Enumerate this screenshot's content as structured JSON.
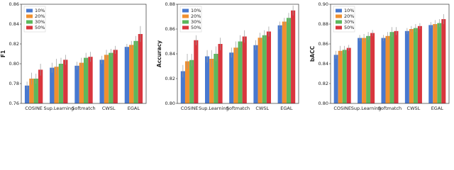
{
  "chart_data": [
    {
      "type": "bar",
      "y_label": "F1",
      "categories": [
        "COSINE",
        "Sup.Learning",
        "Softmatch",
        "CWSL",
        "EGAL"
      ],
      "ylim": [
        0.76,
        0.86
      ],
      "yticks": [
        0.76,
        0.78,
        {
          "value": 0.8,
          "label": "0.80"
        },
        0.82,
        0.84,
        0.86
      ],
      "legend": "upper left",
      "series": [
        {
          "name": "10%",
          "color": "#4878cf",
          "values": [
            0.778,
            0.796,
            0.798,
            0.804,
            0.817
          ],
          "errors": [
            0.004,
            0.005,
            0.004,
            0.004,
            0.003
          ]
        },
        {
          "name": "20%",
          "color": "#f0902f",
          "values": [
            0.785,
            0.797,
            0.801,
            0.809,
            0.819
          ],
          "errors": [
            0.006,
            0.008,
            0.005,
            0.005,
            0.004
          ]
        },
        {
          "name": "30%",
          "color": "#5cb85c",
          "values": [
            0.785,
            0.8,
            0.806,
            0.811,
            0.823
          ],
          "errors": [
            0.005,
            0.006,
            0.005,
            0.004,
            0.005
          ]
        },
        {
          "name": "50%",
          "color": "#d9363e",
          "values": [
            0.794,
            0.804,
            0.807,
            0.814,
            0.83
          ],
          "errors": [
            0.006,
            0.005,
            0.005,
            0.004,
            0.008
          ]
        }
      ]
    },
    {
      "type": "bar",
      "y_label": "Accuracy",
      "categories": [
        "COSINE",
        "Sup.Learning",
        "Softmatch",
        "CWSL",
        "EGAL"
      ],
      "ylim": [
        0.8,
        0.88
      ],
      "yticks": [
        {
          "value": 0.8,
          "label": "0.80"
        },
        0.82,
        0.84,
        0.86,
        0.88
      ],
      "legend": "upper left",
      "series": [
        {
          "name": "10%",
          "color": "#4878cf",
          "values": [
            0.826,
            0.838,
            0.841,
            0.847,
            0.863
          ],
          "errors": [
            0.005,
            0.005,
            0.004,
            0.004,
            0.003
          ]
        },
        {
          "name": "20%",
          "color": "#f0902f",
          "values": [
            0.834,
            0.836,
            0.845,
            0.853,
            0.866
          ],
          "errors": [
            0.006,
            0.007,
            0.005,
            0.004,
            0.003
          ]
        },
        {
          "name": "30%",
          "color": "#5cb85c",
          "values": [
            0.835,
            0.84,
            0.85,
            0.855,
            0.869
          ],
          "errors": [
            0.005,
            0.006,
            0.005,
            0.004,
            0.004
          ]
        },
        {
          "name": "50%",
          "color": "#d9363e",
          "values": [
            0.851,
            0.848,
            0.854,
            0.858,
            0.875
          ],
          "errors": [
            0.004,
            0.005,
            0.005,
            0.004,
            0.004
          ]
        }
      ]
    },
    {
      "type": "bar",
      "y_label": "bACC",
      "categories": [
        "COSINE",
        "Sup.Learning",
        "Softmatch",
        "CWSL",
        "EGAL"
      ],
      "ylim": [
        0.8,
        0.9
      ],
      "yticks": [
        {
          "value": 0.8,
          "label": "0.80"
        },
        0.82,
        0.84,
        0.86,
        0.88,
        {
          "value": 0.9,
          "label": "0.90"
        }
      ],
      "legend": "upper left",
      "series": [
        {
          "name": "10%",
          "color": "#4878cf",
          "values": [
            0.849,
            0.866,
            0.866,
            0.873,
            0.879
          ],
          "errors": [
            0.004,
            0.003,
            0.003,
            0.003,
            0.003
          ]
        },
        {
          "name": "20%",
          "color": "#f0902f",
          "values": [
            0.853,
            0.866,
            0.868,
            0.875,
            0.88
          ],
          "errors": [
            0.005,
            0.004,
            0.004,
            0.003,
            0.004
          ]
        },
        {
          "name": "30%",
          "color": "#5cb85c",
          "values": [
            0.854,
            0.868,
            0.872,
            0.876,
            0.881
          ],
          "errors": [
            0.004,
            0.004,
            0.005,
            0.004,
            0.004
          ]
        },
        {
          "name": "50%",
          "color": "#d9363e",
          "values": [
            0.856,
            0.871,
            0.873,
            0.878,
            0.885
          ],
          "errors": [
            0.003,
            0.003,
            0.004,
            0.003,
            0.005
          ]
        }
      ]
    }
  ]
}
